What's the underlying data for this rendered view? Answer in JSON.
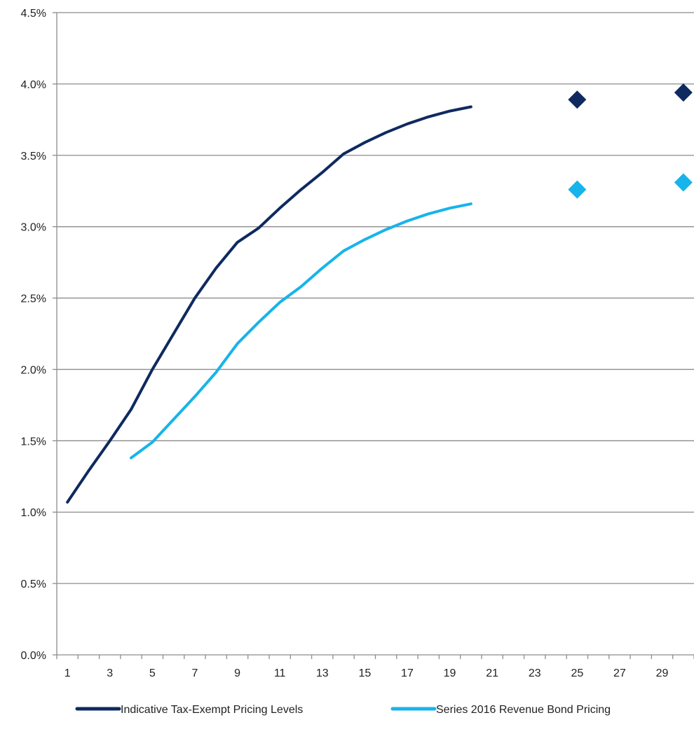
{
  "chart_data": {
    "type": "line",
    "title": "",
    "xlabel": "",
    "ylabel": "",
    "xlim": [
      0.5,
      30.5
    ],
    "ylim": [
      0,
      4.5
    ],
    "y_ticks": [
      "0.0%",
      "0.5%",
      "1.0%",
      "1.5%",
      "2.0%",
      "2.5%",
      "3.0%",
      "3.5%",
      "4.0%",
      "4.5%"
    ],
    "y_tick_values": [
      0,
      0.5,
      1.0,
      1.5,
      2.0,
      2.5,
      3.0,
      3.5,
      4.0,
      4.5
    ],
    "x_ticks": [
      "1",
      "3",
      "5",
      "7",
      "9",
      "11",
      "13",
      "15",
      "17",
      "19",
      "21",
      "23",
      "25",
      "27",
      "29"
    ],
    "x_tick_values": [
      1,
      3,
      5,
      7,
      9,
      11,
      13,
      15,
      17,
      19,
      21,
      23,
      25,
      27,
      29
    ],
    "grid": "horizontal",
    "legend_position": "bottom",
    "series": [
      {
        "name": "Indicative Tax-Exempt Pricing Levels",
        "color": "#0e2a5f",
        "line": {
          "x": [
            1,
            2,
            3,
            4,
            5,
            6,
            7,
            8,
            9,
            10,
            11,
            12,
            13,
            14,
            15,
            16,
            17,
            18,
            19,
            20
          ],
          "y": [
            1.07,
            1.29,
            1.5,
            1.72,
            2.0,
            2.25,
            2.5,
            2.71,
            2.89,
            2.99,
            3.13,
            3.26,
            3.38,
            3.51,
            3.59,
            3.66,
            3.72,
            3.77,
            3.81,
            3.84
          ]
        },
        "markers": {
          "x": [
            25,
            30
          ],
          "y": [
            3.89,
            3.94
          ]
        }
      },
      {
        "name": "Series 2016 Revenue Bond Pricing",
        "color": "#16b4ea",
        "line": {
          "x": [
            4,
            5,
            6,
            7,
            8,
            9,
            10,
            11,
            12,
            13,
            14,
            15,
            16,
            17,
            18,
            19,
            20
          ],
          "y": [
            1.38,
            1.49,
            1.65,
            1.81,
            1.98,
            2.18,
            2.33,
            2.47,
            2.58,
            2.71,
            2.83,
            2.91,
            2.98,
            3.04,
            3.09,
            3.13,
            3.16
          ]
        },
        "markers": {
          "x": [
            25,
            30
          ],
          "y": [
            3.26,
            3.31
          ]
        }
      }
    ]
  }
}
